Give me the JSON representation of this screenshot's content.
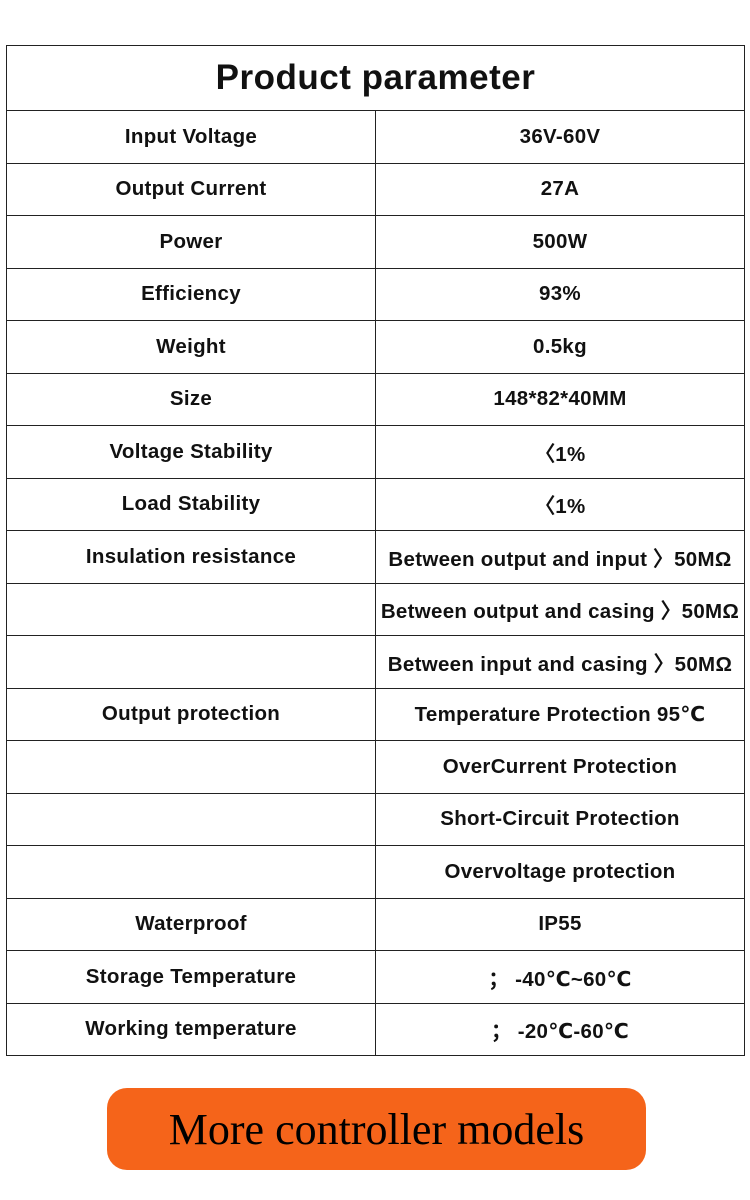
{
  "table": {
    "title": "Product parameter",
    "rows": [
      {
        "label": "Input Voltage",
        "value": "36V-60V"
      },
      {
        "label": "Output Current",
        "value": "27A"
      },
      {
        "label": "Power",
        "value": "500W"
      },
      {
        "label": "Efficiency",
        "value": "93%"
      },
      {
        "label": "Weight",
        "value": "0.5kg"
      },
      {
        "label": "Size",
        "value": "148*82*40MM"
      },
      {
        "label": "Voltage Stability",
        "value": "〈1%"
      },
      {
        "label": "Load Stability",
        "value": "〈1%"
      },
      {
        "label": "Insulation resistance",
        "value": "Between output and input 〉50MΩ"
      },
      {
        "label": "",
        "value": "Between output and casing 〉50MΩ"
      },
      {
        "label": "",
        "value": "Between input and casing 〉50MΩ"
      },
      {
        "label": "Output protection",
        "value": "Temperature Protection 95℃"
      },
      {
        "label": "",
        "value": "OverCurrent Protection"
      },
      {
        "label": "",
        "value": "Short-Circuit Protection"
      },
      {
        "label": "",
        "value": "Overvoltage protection"
      },
      {
        "label": "Waterproof",
        "value": "IP55"
      },
      {
        "label": "Storage Temperature",
        "value": "； -40℃~60℃"
      },
      {
        "label": "Working temperature",
        "value": "； -20℃-60℃"
      }
    ]
  },
  "more_button": {
    "label": "More controller models",
    "color": "#f5641a"
  }
}
